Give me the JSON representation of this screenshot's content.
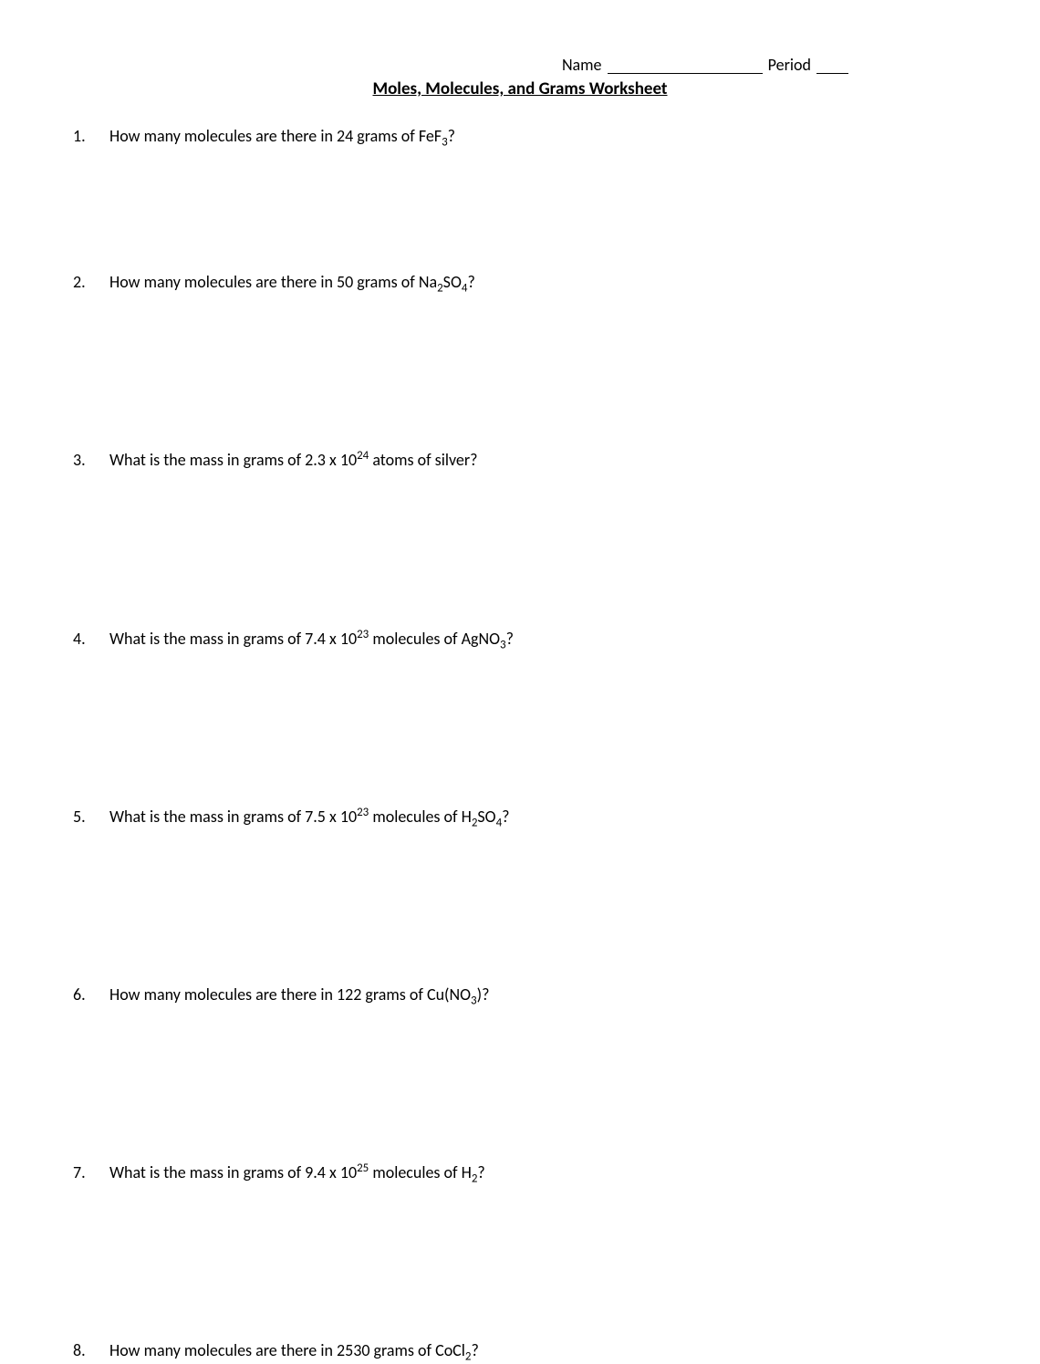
{
  "header": {
    "name_label": "Name",
    "period_label": "Period"
  },
  "title": "Moles, Molecules, and Grams Worksheet",
  "questions": [
    {
      "html": "How many molecules are there in 24 grams of FeF<sub>3</sub>?",
      "spacing": "normal"
    },
    {
      "html": "How many molecules are there in 50 grams of Na<sub>2</sub>SO<sub>4</sub>?",
      "spacing": "large"
    },
    {
      "html": "What is the mass in grams of 2.3 x 10<sup>24</sup> atoms of silver?",
      "spacing": "large"
    },
    {
      "html": "What is the mass in grams of 7.4 x 10<sup>23</sup> molecules of AgNO<sub>3</sub>?",
      "spacing": "large"
    },
    {
      "html": "What is the mass in grams of 7.5 x 10<sup>23</sup> molecules of H<sub>2</sub>SO<sub>4</sub>?",
      "spacing": "large"
    },
    {
      "html": "How many molecules are there in 122 grams of Cu(NO<sub>3</sub>)?",
      "spacing": "large"
    },
    {
      "html": "What is the mass in grams of 9.4 x 10<sup>25</sup> molecules of H<sub>2</sub>?",
      "spacing": "large"
    },
    {
      "html": "How many molecules are there in 2530 grams of CoCl<sub>2</sub>?",
      "spacing": "normal"
    }
  ],
  "style": {
    "font_family": "Calibri",
    "body_font_size": 18,
    "title_font_size": 19,
    "text_color": "#000000",
    "background_color": "#ffffff"
  }
}
